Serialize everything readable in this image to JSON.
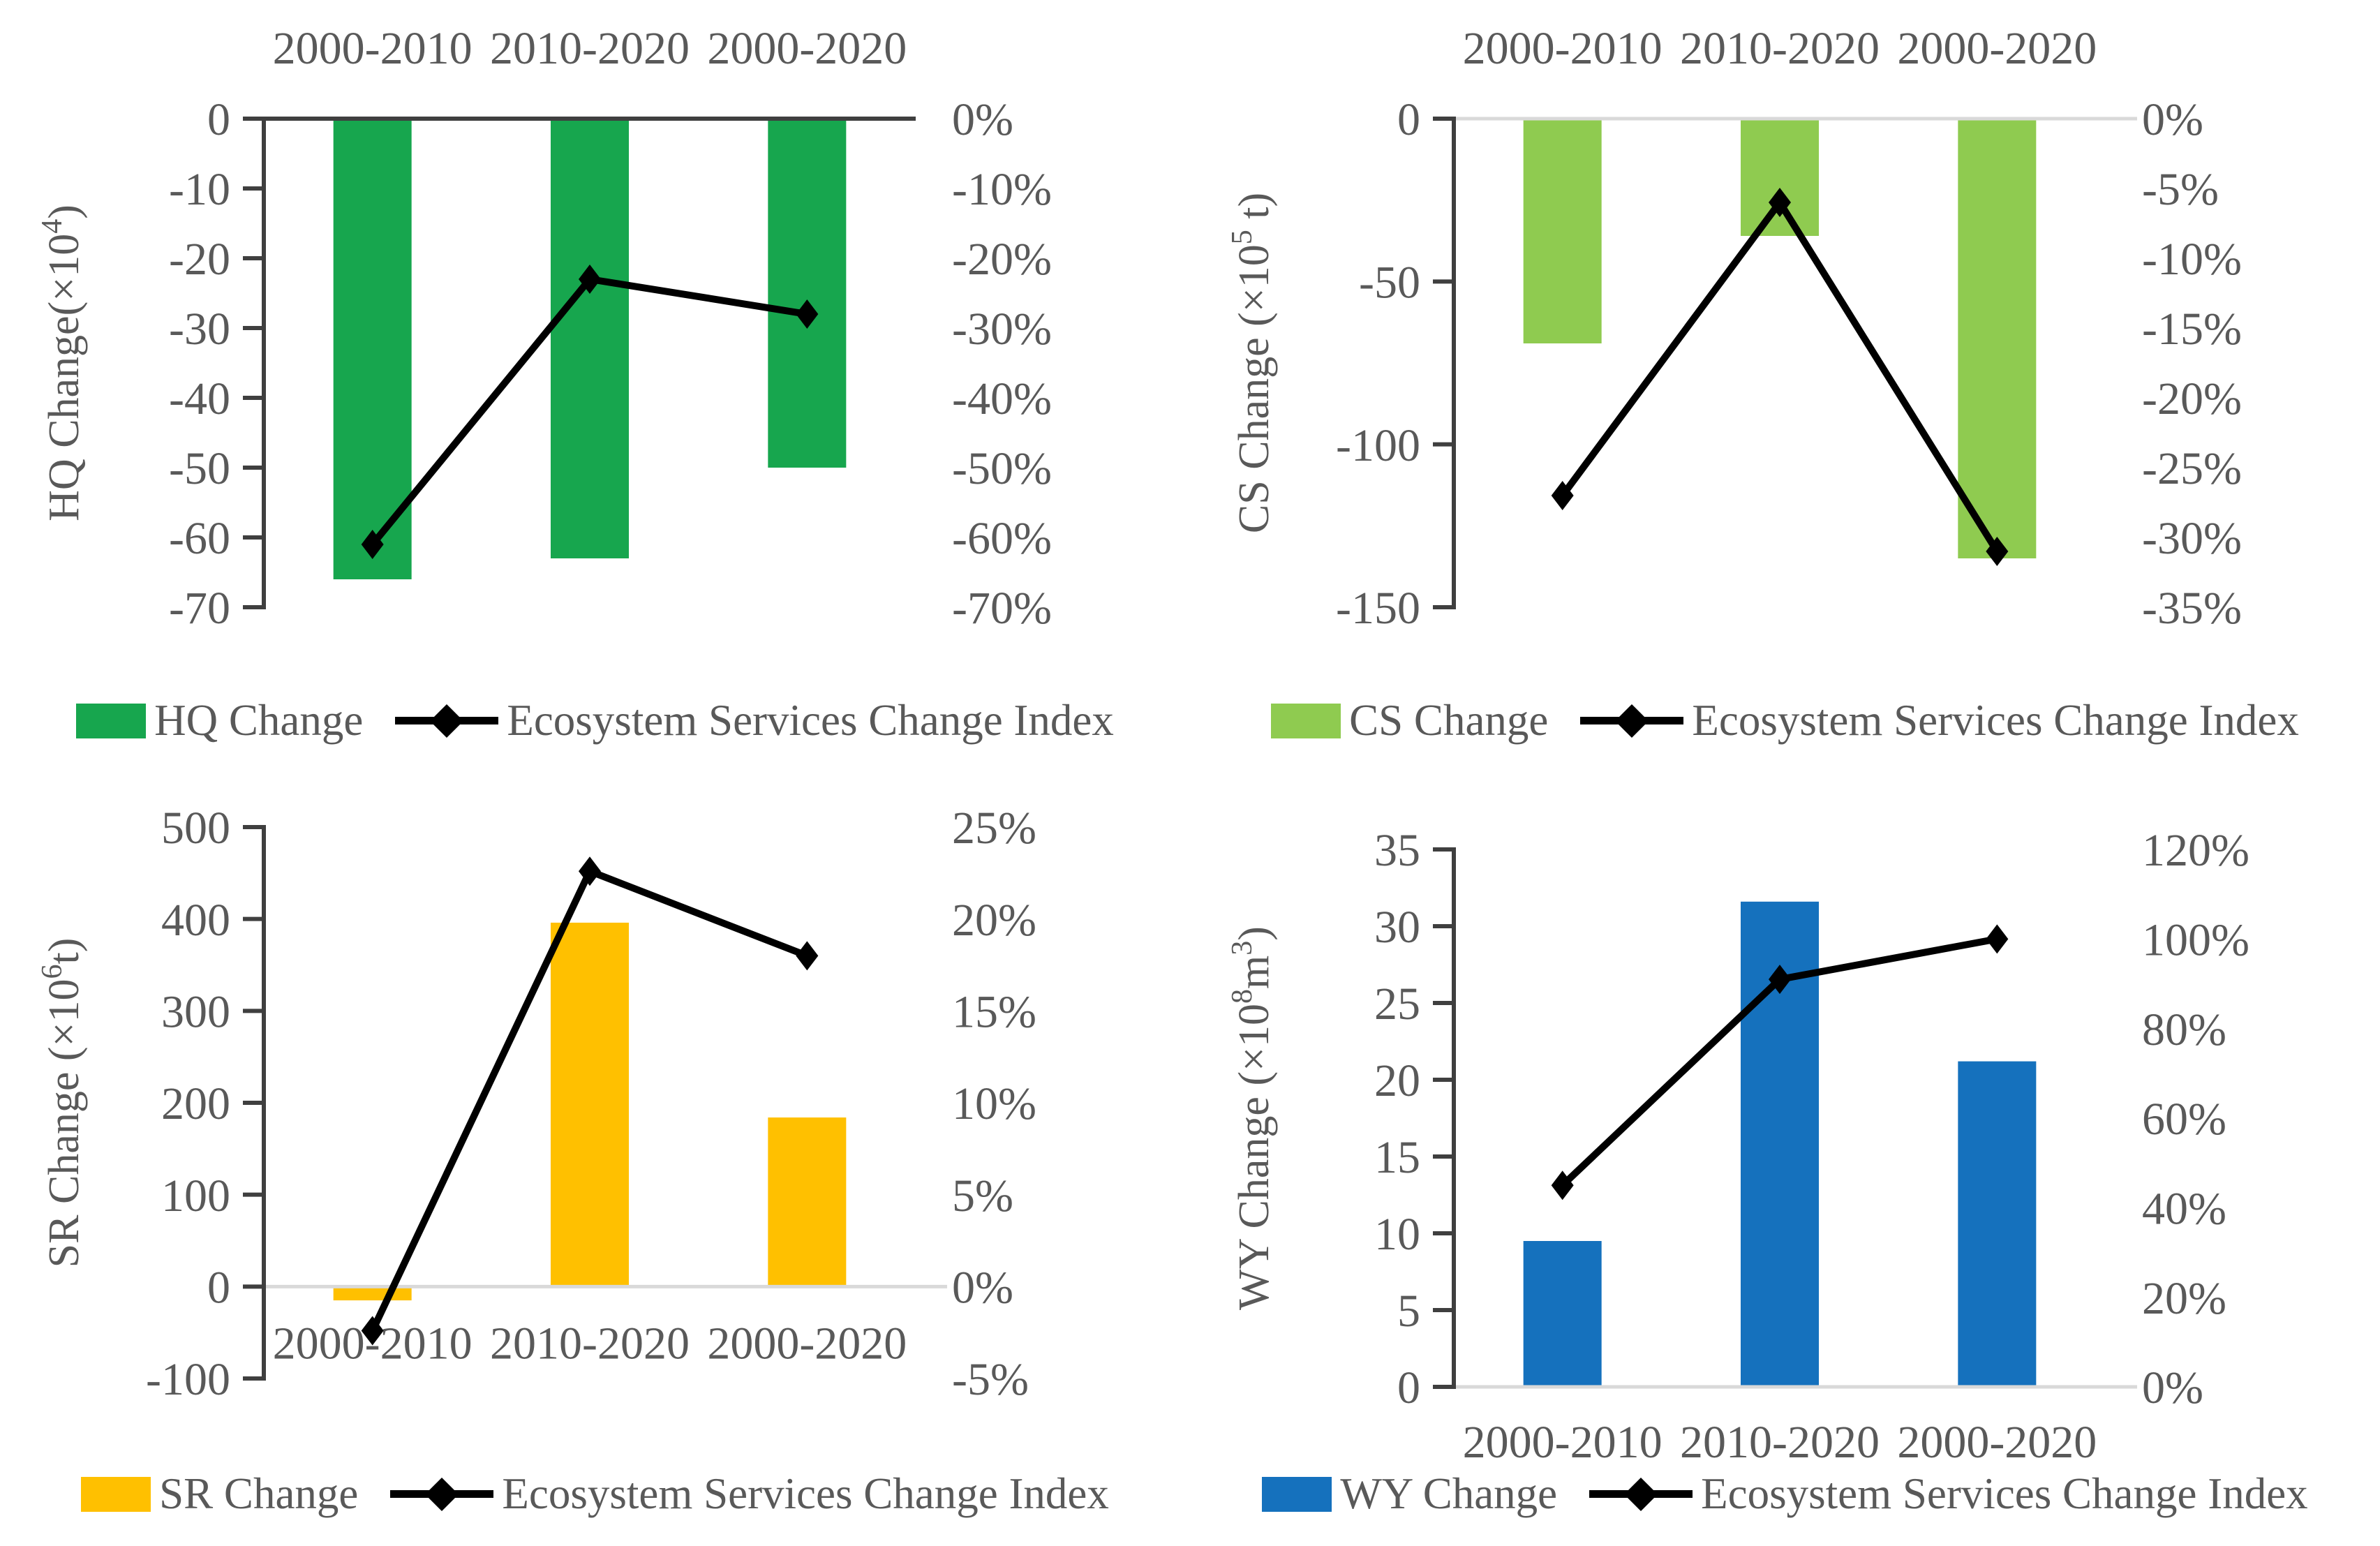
{
  "figure": {
    "description_colors": {
      "text": "#595959",
      "axis_line": "#3F3F3F",
      "light_zero_line": "#D9D9D9",
      "line_series": "#000000"
    }
  },
  "chart_data": [
    {
      "type": "bar+line",
      "panel": "top-left",
      "categories": [
        "2000-2010",
        "2010-2020",
        "2000-2020"
      ],
      "category_label_position": "top",
      "series": [
        {
          "name": "HQ Change",
          "type": "bar",
          "axis": "left",
          "color": "#17A64E",
          "values": [
            -66,
            -63,
            -50
          ]
        },
        {
          "name": "Ecosystem Services Change Index",
          "type": "line",
          "axis": "right",
          "color": "#000000",
          "marker": "diamond",
          "values": [
            -61,
            -23,
            -28
          ]
        }
      ],
      "left_axis": {
        "label": "HQ Change(×10⁴)",
        "min": -70,
        "max": 0,
        "tick_values": [
          0,
          -10,
          -20,
          -30,
          -40,
          -50,
          -60,
          -70
        ],
        "tick_labels": [
          "0",
          "-10",
          "-20",
          "-30",
          "-40",
          "-50",
          "-60",
          "-70"
        ]
      },
      "right_axis": {
        "label": "",
        "min": -70,
        "max": 0,
        "unit": "%",
        "tick_values": [
          0,
          -10,
          -20,
          -30,
          -40,
          -50,
          -60,
          -70
        ],
        "tick_labels": [
          "0%",
          "-10%",
          "-20%",
          "-30%",
          "-40%",
          "-50%",
          "-60%",
          "-70%"
        ]
      },
      "zero_line_color": "#3F3F3F",
      "grid": false,
      "legend_position": "bottom",
      "legend": [
        "HQ Change",
        "Ecosystem Services Change Index"
      ]
    },
    {
      "type": "bar+line",
      "panel": "top-right",
      "categories": [
        "2000-2010",
        "2010-2020",
        "2000-2020"
      ],
      "category_label_position": "top",
      "series": [
        {
          "name": "CS Change",
          "type": "bar",
          "axis": "left",
          "color": "#8FCB50",
          "values": [
            -69,
            -36,
            -135
          ]
        },
        {
          "name": "Ecosystem Services Change Index",
          "type": "line",
          "axis": "right",
          "color": "#000000",
          "marker": "diamond",
          "values": [
            -27,
            -6,
            -31
          ]
        }
      ],
      "left_axis": {
        "label": "CS Change (×10⁵ t)",
        "min": -150,
        "max": 0,
        "tick_values": [
          0,
          -50,
          -100,
          -150
        ],
        "tick_labels": [
          "0",
          "-50",
          "-100",
          "-150"
        ]
      },
      "right_axis": {
        "label": "",
        "min": -35,
        "max": 0,
        "unit": "%",
        "tick_values": [
          0,
          -5,
          -10,
          -15,
          -20,
          -25,
          -30,
          -35
        ],
        "tick_labels": [
          "0%",
          "-5%",
          "-10%",
          "-15%",
          "-20%",
          "-25%",
          "-30%",
          "-35%"
        ]
      },
      "zero_line_color": "#D9D9D9",
      "grid": false,
      "legend_position": "bottom",
      "legend": [
        "CS Change",
        "Ecosystem Services Change Index"
      ]
    },
    {
      "type": "bar+line",
      "panel": "bottom-left",
      "categories": [
        "2000-2010",
        "2010-2020",
        "2000-2020"
      ],
      "category_label_position": "below-zero",
      "series": [
        {
          "name": "SR Change",
          "type": "bar",
          "axis": "left",
          "color": "#FFC000",
          "values": [
            -15,
            396,
            184
          ]
        },
        {
          "name": "Ecosystem Services Change Index",
          "type": "line",
          "axis": "right",
          "color": "#000000",
          "marker": "diamond",
          "values": [
            -2.4,
            22.6,
            18
          ]
        }
      ],
      "left_axis": {
        "label": "SR Change (×10⁶t)",
        "min": -100,
        "max": 500,
        "tick_values": [
          500,
          400,
          300,
          200,
          100,
          0,
          -100
        ],
        "tick_labels": [
          "500",
          "400",
          "300",
          "200",
          "100",
          "0",
          "-100"
        ]
      },
      "right_axis": {
        "label": "",
        "min": -5,
        "max": 25,
        "unit": "%",
        "tick_values": [
          25,
          20,
          15,
          10,
          5,
          0,
          -5
        ],
        "tick_labels": [
          "25%",
          "20%",
          "15%",
          "10%",
          "5%",
          "0%",
          "-5%"
        ]
      },
      "zero_line_color": "#D9D9D9",
      "grid": false,
      "legend_position": "bottom",
      "legend": [
        "SR Change",
        "Ecosystem Services Change Index"
      ]
    },
    {
      "type": "bar+line",
      "panel": "bottom-right",
      "categories": [
        "2000-2010",
        "2010-2020",
        "2000-2020"
      ],
      "category_label_position": "below-axis",
      "series": [
        {
          "name": "WY Change",
          "type": "bar",
          "axis": "left",
          "color": "#1571BD",
          "values": [
            9.5,
            31.6,
            21.2
          ]
        },
        {
          "name": "Ecosystem Services Change Index",
          "type": "line",
          "axis": "right",
          "color": "#000000",
          "marker": "diamond",
          "values": [
            45,
            91,
            100
          ]
        }
      ],
      "left_axis": {
        "label": "WY Change (×10⁸m³)",
        "min": 0,
        "max": 35,
        "tick_values": [
          35,
          30,
          25,
          20,
          15,
          10,
          5,
          0
        ],
        "tick_labels": [
          "35",
          "30",
          "25",
          "20",
          "15",
          "10",
          "5",
          "0"
        ]
      },
      "right_axis": {
        "label": "",
        "min": 0,
        "max": 120,
        "unit": "%",
        "tick_values": [
          120,
          100,
          80,
          60,
          40,
          20,
          0
        ],
        "tick_labels": [
          "120%",
          "100%",
          "80%",
          "60%",
          "40%",
          "20%",
          "0%"
        ]
      },
      "zero_line_color": "#D9D9D9",
      "grid": false,
      "legend_position": "bottom",
      "legend": [
        "WY Change",
        "Ecosystem Services Change Index"
      ]
    }
  ]
}
